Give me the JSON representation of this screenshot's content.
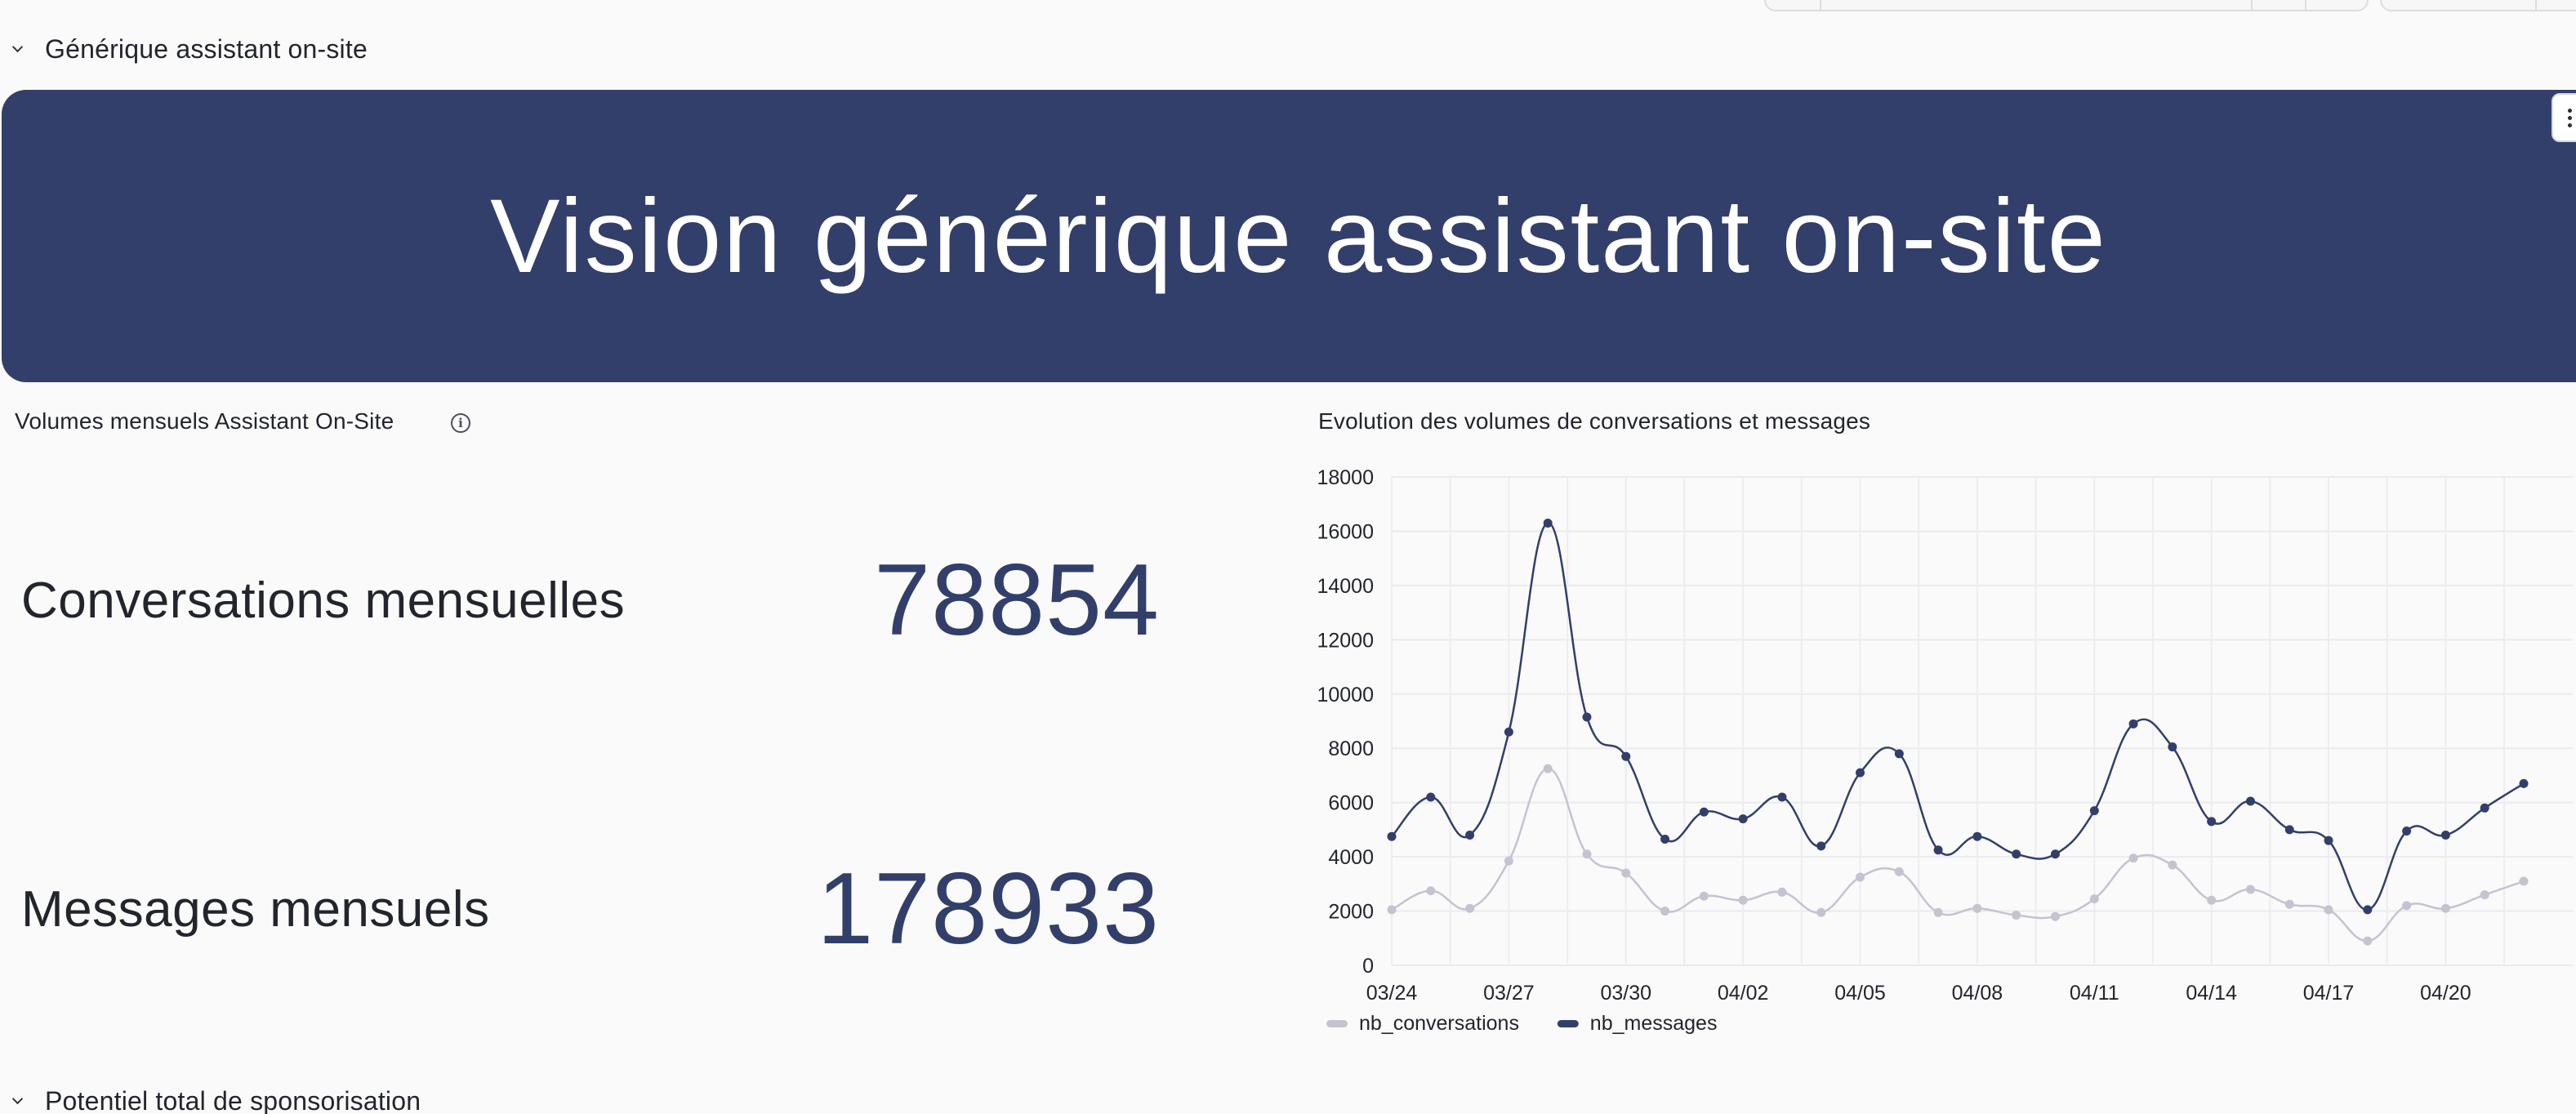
{
  "sections": [
    {
      "label": "Générique assistant on-site",
      "expanded": true
    },
    {
      "label": "Potentiel total de sponsorisation",
      "expanded": true
    }
  ],
  "banner": {
    "title": "Vision générique assistant on-site"
  },
  "kpi_card": {
    "title": "Volumes mensuels Assistant On-Site",
    "info_icon": "info-icon",
    "items": [
      {
        "label": "Conversations mensuelles",
        "value": "78854"
      },
      {
        "label": "Messages mensuels",
        "value": "178933"
      }
    ]
  },
  "chart_card": {
    "title": "Evolution des volumes de conversations et messages"
  },
  "colors": {
    "brand": "#323f6a",
    "conversations": "#c3c4d0",
    "messages": "#323f6a"
  },
  "chart_data": {
    "type": "line",
    "title": "Evolution des volumes de conversations et messages",
    "xlabel": "",
    "ylabel": "",
    "ylim": [
      0,
      18000
    ],
    "yticks": [
      0,
      2000,
      4000,
      6000,
      8000,
      10000,
      12000,
      14000,
      16000,
      18000
    ],
    "x": [
      "03/24",
      "03/25",
      "03/26",
      "03/27",
      "03/28",
      "03/29",
      "03/30",
      "03/31",
      "04/01",
      "04/02",
      "04/03",
      "04/04",
      "04/05",
      "04/06",
      "04/07",
      "04/08",
      "04/09",
      "04/10",
      "04/11",
      "04/12",
      "04/13",
      "04/14",
      "04/15",
      "04/16",
      "04/17",
      "04/18",
      "04/19",
      "04/20",
      "04/21",
      "04/22"
    ],
    "xticks": [
      "03/24",
      "03/27",
      "03/30",
      "04/02",
      "04/05",
      "04/08",
      "04/11",
      "04/14",
      "04/17",
      "04/20"
    ],
    "grid": true,
    "legend": "bottom-left",
    "series": [
      {
        "name": "nb_conversations",
        "values": [
          2050,
          2750,
          2100,
          3850,
          7250,
          4100,
          3400,
          2000,
          2550,
          2400,
          2700,
          1950,
          3250,
          3450,
          1950,
          2100,
          1850,
          1800,
          2450,
          3950,
          3700,
          2400,
          2800,
          2250,
          2050,
          900,
          2200,
          2100,
          2600,
          3100
        ]
      },
      {
        "name": "nb_messages",
        "values": [
          4750,
          6200,
          4800,
          8600,
          16300,
          9150,
          7700,
          4650,
          5650,
          5400,
          6200,
          4400,
          7100,
          7800,
          4250,
          4750,
          4100,
          4100,
          5700,
          8900,
          8050,
          5300,
          6050,
          5000,
          4600,
          2050,
          4950,
          4800,
          5800,
          6700
        ]
      }
    ]
  }
}
